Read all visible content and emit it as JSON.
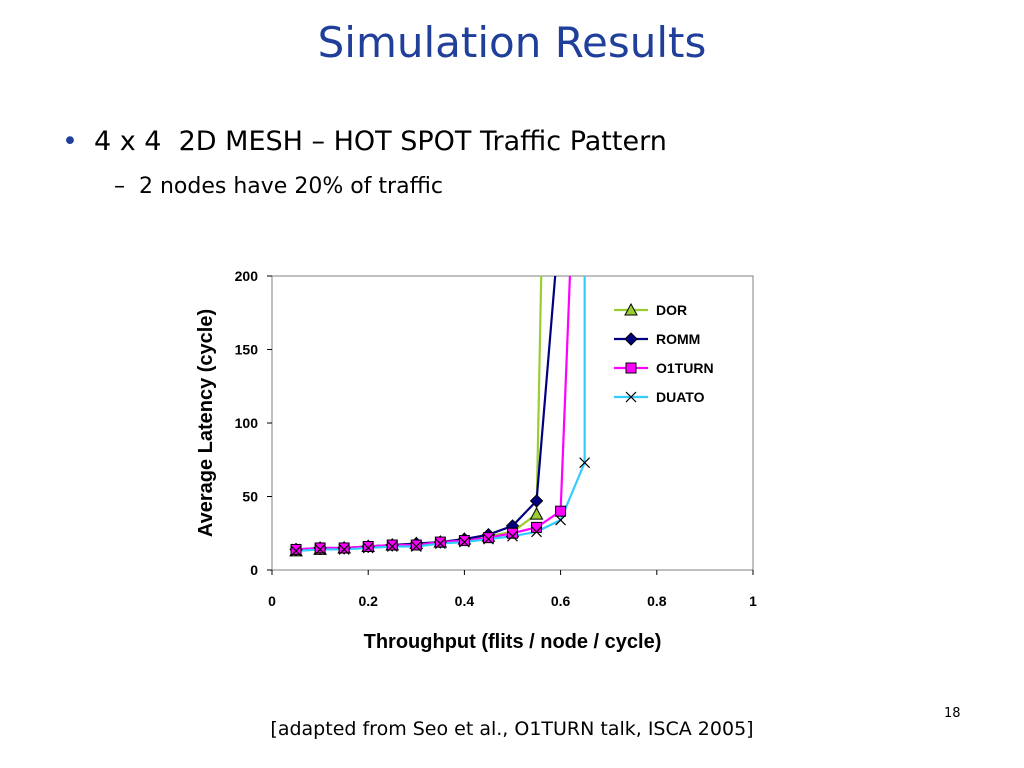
{
  "slide": {
    "title": "Simulation Results",
    "bullet": "4 x 4  2D MESH – HOT SPOT Traffic Pattern",
    "bullet_marker": "•",
    "subbullet": "2 nodes have 20% of traffic",
    "subbullet_marker": "–",
    "footer": "[adapted from Seo et al., O1TURN talk, ISCA 2005]",
    "page_number": "18"
  },
  "chart_data": {
    "type": "line",
    "xlabel": "Throughput (flits / node / cycle)",
    "ylabel": "Average Latency (cycle)",
    "xlim": [
      0,
      1
    ],
    "ylim": [
      0,
      200
    ],
    "xticks": [
      "0",
      "0.2",
      "0.4",
      "0.6",
      "0.8",
      "1"
    ],
    "yticks": [
      "0",
      "50",
      "100",
      "150",
      "200"
    ],
    "grid": false,
    "legend_position": "top-right",
    "series": [
      {
        "name": "DOR",
        "color": "#9acd32",
        "marker": "triangle",
        "x": [
          0.05,
          0.1,
          0.15,
          0.2,
          0.25,
          0.3,
          0.35,
          0.4,
          0.45,
          0.5,
          0.55,
          0.56
        ],
        "y": [
          13,
          14,
          15,
          16,
          17,
          18,
          19,
          21,
          23,
          26,
          38,
          205
        ]
      },
      {
        "name": "ROMM",
        "color": "#000080",
        "marker": "diamond",
        "x": [
          0.05,
          0.1,
          0.15,
          0.2,
          0.25,
          0.3,
          0.35,
          0.4,
          0.45,
          0.5,
          0.55,
          0.59
        ],
        "y": [
          14,
          15,
          15,
          16,
          17,
          18,
          19,
          21,
          24,
          30,
          47,
          205
        ]
      },
      {
        "name": "O1TURN",
        "color": "#ff00ff",
        "marker": "square",
        "x": [
          0.05,
          0.1,
          0.15,
          0.2,
          0.25,
          0.3,
          0.35,
          0.4,
          0.45,
          0.5,
          0.55,
          0.6,
          0.62
        ],
        "y": [
          14,
          15,
          15,
          16,
          17,
          17,
          19,
          20,
          22,
          25,
          29,
          40,
          205
        ]
      },
      {
        "name": "DUATO",
        "color": "#33ccff",
        "marker": "x",
        "x": [
          0.05,
          0.1,
          0.15,
          0.2,
          0.25,
          0.3,
          0.35,
          0.4,
          0.45,
          0.5,
          0.55,
          0.6,
          0.65,
          0.65
        ],
        "y": [
          13,
          14,
          14,
          15,
          16,
          16,
          18,
          19,
          21,
          23,
          26,
          34,
          73,
          205
        ]
      }
    ]
  }
}
